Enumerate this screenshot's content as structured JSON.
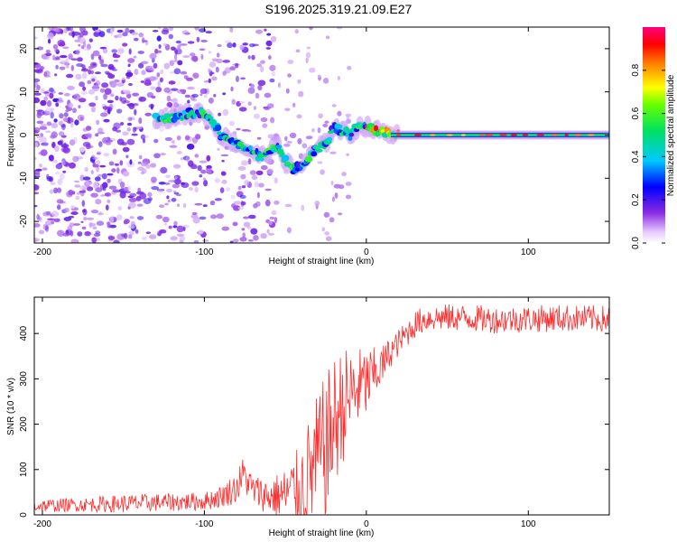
{
  "title": "S196.2025.319.21.09.E27",
  "colors": {
    "trace": "#ff2a2a",
    "axis": "#000000",
    "background": "#ffffff"
  },
  "chart_data": [
    {
      "type": "heatmap",
      "name": "spectrogram",
      "xlabel": "Height of straight line (km)",
      "ylabel": "Frequency (Hz)",
      "xlim": [
        -205,
        150
      ],
      "ylim": [
        -25,
        25
      ],
      "xticks": [
        -200,
        -100,
        0,
        100
      ],
      "yticks": [
        -20,
        -10,
        0,
        10,
        20
      ],
      "colorbar": {
        "label": "Normalized spectral amplitude",
        "range": [
          0,
          1
        ],
        "ticks": [
          "0.0",
          "0.2",
          "0.4",
          "0.6",
          "0.8"
        ],
        "tick_values": [
          0.0,
          0.2,
          0.4,
          0.6,
          0.8
        ],
        "colormap": "rainbow (white → violet → blue → cyan → green → yellow → red → magenta)"
      },
      "ridge": {
        "description": "Frequency of peak spectral amplitude vs height",
        "x": [
          -130,
          -120,
          -110,
          -100,
          -95,
          -90,
          -85,
          -80,
          -75,
          -70,
          -65,
          -60,
          -55,
          -50,
          -45,
          -40,
          -35,
          -30,
          -25,
          -20,
          -15,
          -10,
          -5,
          0,
          5,
          10,
          20,
          40,
          60,
          80,
          100,
          120,
          150
        ],
        "y": [
          4,
          4,
          5,
          5,
          3,
          0,
          -1,
          -2,
          -3,
          -4,
          -5,
          -4,
          -2,
          -6,
          -8,
          -7,
          -5,
          -3,
          -2,
          2,
          1,
          0,
          2,
          2,
          1,
          1,
          0,
          0,
          0,
          0,
          0,
          0,
          0
        ]
      }
    },
    {
      "type": "line",
      "name": "snr",
      "xlabel": "Height of straight line (km)",
      "ylabel": "SNR (10 * v/v)",
      "xlim": [
        -205,
        150
      ],
      "ylim": [
        0,
        480
      ],
      "xticks": [
        -200,
        -100,
        0,
        100
      ],
      "yticks": [
        0,
        100,
        200,
        300,
        400
      ],
      "series": [
        {
          "name": "SNR",
          "x": [
            -205,
            -180,
            -150,
            -120,
            -100,
            -90,
            -80,
            -76,
            -70,
            -60,
            -50,
            -40,
            -35,
            -30,
            -25,
            -20,
            -15,
            -10,
            -5,
            0,
            5,
            10,
            15,
            20,
            25,
            30,
            35,
            40,
            50,
            60,
            80,
            100,
            120,
            150
          ],
          "y": [
            20,
            22,
            25,
            28,
            30,
            40,
            60,
            90,
            55,
            40,
            45,
            60,
            90,
            120,
            150,
            200,
            240,
            260,
            280,
            290,
            310,
            330,
            360,
            380,
            400,
            420,
            430,
            435,
            435,
            435,
            430,
            432,
            434,
            432
          ],
          "noise_band": [
            15,
            15,
            20,
            20,
            20,
            25,
            35,
            40,
            35,
            40,
            60,
            100,
            130,
            150,
            160,
            150,
            130,
            110,
            90,
            80,
            60,
            45,
            35,
            30,
            30,
            30,
            30,
            30,
            30,
            30,
            30,
            30,
            30,
            30
          ]
        }
      ]
    }
  ]
}
